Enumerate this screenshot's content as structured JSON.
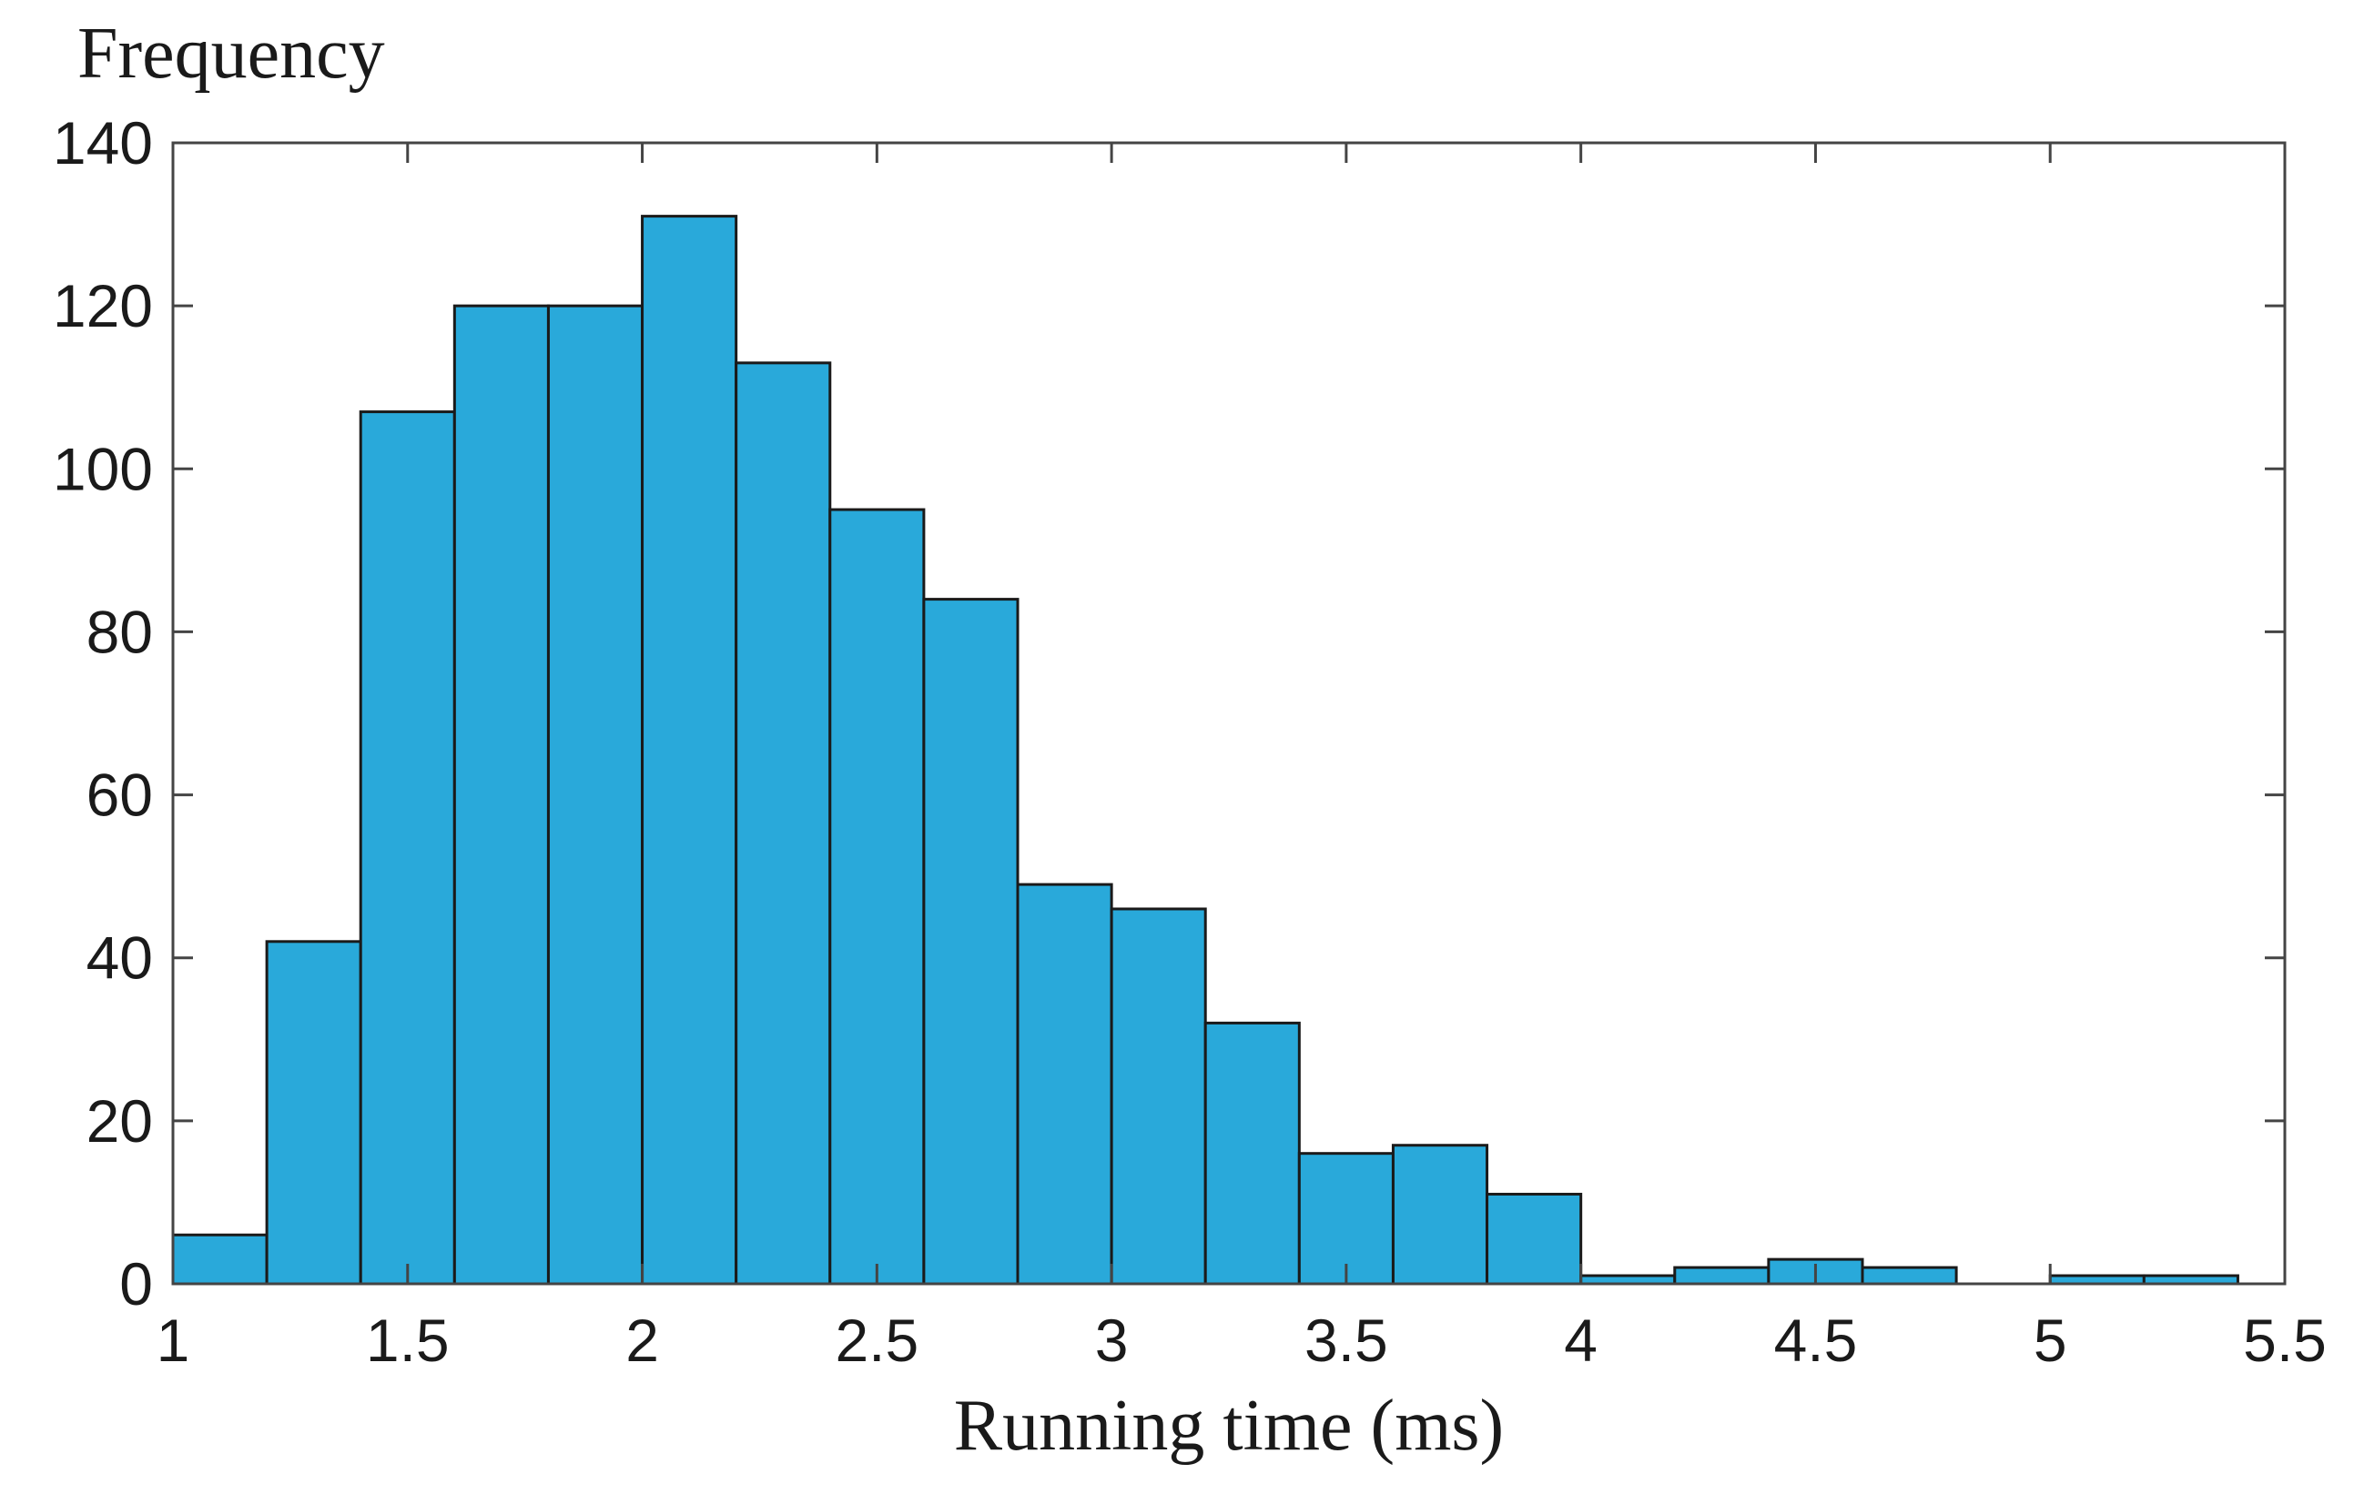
{
  "chart_data": {
    "type": "bar",
    "subtype": "histogram",
    "ylabel": "Frequency",
    "xlabel": "Running time (ms)",
    "bin_width": 0.2,
    "bins": [
      {
        "start": 1.0,
        "end": 1.2,
        "count": 6
      },
      {
        "start": 1.2,
        "end": 1.4,
        "count": 42
      },
      {
        "start": 1.4,
        "end": 1.6,
        "count": 107
      },
      {
        "start": 1.6,
        "end": 1.8,
        "count": 120
      },
      {
        "start": 1.8,
        "end": 2.0,
        "count": 120
      },
      {
        "start": 2.0,
        "end": 2.2,
        "count": 131
      },
      {
        "start": 2.2,
        "end": 2.4,
        "count": 113
      },
      {
        "start": 2.4,
        "end": 2.6,
        "count": 95
      },
      {
        "start": 2.6,
        "end": 2.8,
        "count": 84
      },
      {
        "start": 2.8,
        "end": 3.0,
        "count": 49
      },
      {
        "start": 3.0,
        "end": 3.2,
        "count": 46
      },
      {
        "start": 3.2,
        "end": 3.4,
        "count": 32
      },
      {
        "start": 3.4,
        "end": 3.6,
        "count": 16
      },
      {
        "start": 3.6,
        "end": 3.8,
        "count": 17
      },
      {
        "start": 3.8,
        "end": 4.0,
        "count": 11
      },
      {
        "start": 4.0,
        "end": 4.2,
        "count": 1
      },
      {
        "start": 4.2,
        "end": 4.4,
        "count": 2
      },
      {
        "start": 4.4,
        "end": 4.6,
        "count": 3
      },
      {
        "start": 4.6,
        "end": 4.8,
        "count": 2
      },
      {
        "start": 4.8,
        "end": 5.0,
        "count": 0
      },
      {
        "start": 5.0,
        "end": 5.2,
        "count": 1
      },
      {
        "start": 5.2,
        "end": 5.4,
        "count": 1
      }
    ],
    "xlim": [
      1,
      5.5
    ],
    "ylim": [
      0,
      140
    ],
    "x_ticks": [
      "1",
      "1.5",
      "2",
      "2.5",
      "3",
      "3.5",
      "4",
      "4.5",
      "5",
      "5.5"
    ],
    "y_ticks": [
      "0",
      "20",
      "40",
      "60",
      "80",
      "100",
      "120",
      "140"
    ],
    "grid": false,
    "legend": "none",
    "bar_color": "#29a9da",
    "edge_color": "#1a1a1a",
    "axis_color": "#444444"
  }
}
